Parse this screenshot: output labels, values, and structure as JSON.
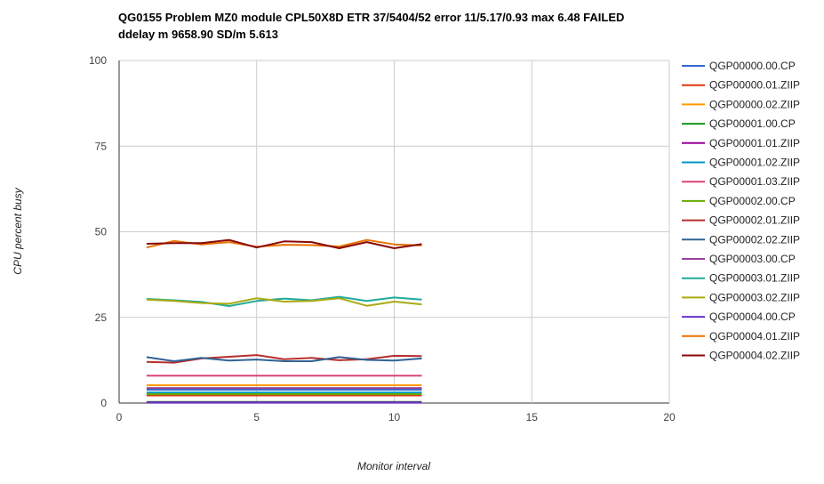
{
  "chart_data": {
    "type": "line",
    "title": "QG0155 Problem MZ0 module CPL50X8D ETR 37/5404/52 error 11/5.17/0.93 max 6.48 FAILED",
    "subtitle": "ddelay m 9658.90 SD/m 5.613",
    "xlabel": "Monitor interval",
    "ylabel": "CPU percent busy",
    "xlim": [
      0,
      20
    ],
    "ylim": [
      0,
      100
    ],
    "xticks": [
      "0",
      "5",
      "10",
      "15",
      "20"
    ],
    "yticks": [
      "0",
      "25",
      "50",
      "75",
      "100"
    ],
    "grid": true,
    "legend_position": "right",
    "x": [
      1,
      2,
      3,
      4,
      5,
      6,
      7,
      8,
      9,
      10,
      11
    ],
    "series": [
      {
        "name": "QGP00000.00.CP",
        "color": "#3366cc",
        "values": [
          3.9,
          3.9,
          3.9,
          3.9,
          3.9,
          3.9,
          3.9,
          3.9,
          3.9,
          3.9,
          3.9
        ]
      },
      {
        "name": "QGP00000.01.ZIIP",
        "color": "#dc3912",
        "values": [
          2.2,
          2.2,
          2.2,
          2.2,
          2.2,
          2.2,
          2.2,
          2.2,
          2.2,
          2.2,
          2.2
        ]
      },
      {
        "name": "QGP00000.02.ZIIP",
        "color": "#ff9900",
        "values": [
          5.2,
          5.2,
          5.2,
          5.2,
          5.2,
          5.2,
          5.2,
          5.2,
          5.2,
          5.2,
          5.2
        ]
      },
      {
        "name": "QGP00001.00.CP",
        "color": "#109618",
        "values": [
          0.3,
          0.3,
          0.3,
          0.3,
          0.3,
          0.3,
          0.3,
          0.3,
          0.3,
          0.3,
          0.3
        ]
      },
      {
        "name": "QGP00001.01.ZIIP",
        "color": "#990099",
        "values": [
          0.2,
          0.2,
          0.2,
          0.2,
          0.2,
          0.2,
          0.2,
          0.2,
          0.2,
          0.2,
          0.2
        ]
      },
      {
        "name": "QGP00001.02.ZIIP",
        "color": "#0099c6",
        "values": [
          3.1,
          3.1,
          3.1,
          3.1,
          3.1,
          3.1,
          3.1,
          3.1,
          3.1,
          3.1,
          3.1
        ]
      },
      {
        "name": "QGP00001.03.ZIIP",
        "color": "#dd4477",
        "values": [
          8.0,
          8.0,
          8.0,
          8.0,
          8.0,
          8.0,
          8.0,
          8.0,
          8.0,
          8.0,
          8.0
        ]
      },
      {
        "name": "QGP00002.00.CP",
        "color": "#66aa00",
        "values": [
          2.6,
          2.6,
          2.6,
          2.6,
          2.6,
          2.6,
          2.6,
          2.6,
          2.6,
          2.6,
          2.6
        ]
      },
      {
        "name": "QGP00002.01.ZIIP",
        "color": "#b82e2e",
        "values": [
          12.0,
          11.8,
          13.0,
          13.5,
          14.0,
          12.8,
          13.2,
          12.5,
          12.8,
          13.8,
          13.7
        ]
      },
      {
        "name": "QGP00002.02.ZIIP",
        "color": "#316395",
        "values": [
          13.4,
          12.2,
          13.2,
          12.4,
          12.7,
          12.2,
          12.2,
          13.4,
          12.6,
          12.4,
          13.0
        ]
      },
      {
        "name": "QGP00003.00.CP",
        "color": "#994499",
        "values": [
          4.4,
          4.4,
          4.4,
          4.4,
          4.4,
          4.4,
          4.4,
          4.4,
          4.4,
          4.4,
          4.4
        ]
      },
      {
        "name": "QGP00003.01.ZIIP",
        "color": "#22aa99",
        "values": [
          30.4,
          30.0,
          29.5,
          28.3,
          29.8,
          30.5,
          30.0,
          31.0,
          29.8,
          30.8,
          30.2
        ]
      },
      {
        "name": "QGP00003.02.ZIIP",
        "color": "#aaaa11",
        "values": [
          30.2,
          29.8,
          29.2,
          29.0,
          30.6,
          29.6,
          29.8,
          30.6,
          28.4,
          29.6,
          28.8
        ]
      },
      {
        "name": "QGP00004.00.CP",
        "color": "#6633cc",
        "values": [
          0.1,
          0.1,
          0.1,
          0.1,
          0.1,
          0.1,
          0.1,
          0.1,
          0.1,
          0.1,
          0.1
        ]
      },
      {
        "name": "QGP00004.01.ZIIP",
        "color": "#e67300",
        "values": [
          45.4,
          47.3,
          46.3,
          47.0,
          45.6,
          46.2,
          46.1,
          45.7,
          47.6,
          46.3,
          46.0
        ]
      },
      {
        "name": "QGP00004.02.ZIIP",
        "color": "#8b0707",
        "values": [
          46.5,
          46.7,
          46.7,
          47.6,
          45.4,
          47.2,
          47.0,
          45.2,
          47.0,
          45.2,
          46.4
        ]
      }
    ]
  }
}
